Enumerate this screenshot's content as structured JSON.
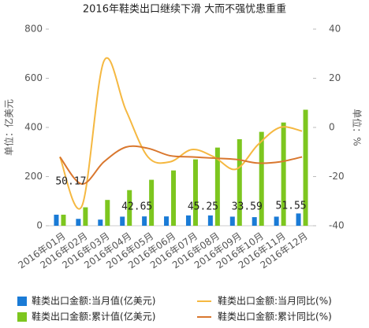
{
  "chart_data": {
    "type": "bar-line",
    "title": "2016年鞋类出口继续下滑 大而不强忧患重重",
    "y_label": "单位：亿美元",
    "y2_label": "单位：%",
    "categories": [
      "2016年01月",
      "2016年02月",
      "2016年03月",
      "2016年04月",
      "2016年05月",
      "2016年06月",
      "2016年07月",
      "2016年08月",
      "2016年09月",
      "2016年10月",
      "2016年11月",
      "2016年12月"
    ],
    "ylim": [
      0,
      800
    ],
    "yticks": [
      0,
      200,
      400,
      600,
      800
    ],
    "y2lim": [
      -40,
      40
    ],
    "y2ticks": [
      -40,
      -20,
      0,
      20,
      40
    ],
    "series": [
      {
        "name": "鞋类出口金额:当月值(亿美元)",
        "kind": "bar",
        "color": "#1a7bd6",
        "values": [
          45,
          28,
          25,
          37,
          38,
          38,
          42,
          42,
          37,
          35,
          37,
          50
        ]
      },
      {
        "name": "鞋类出口金额:累计值(亿美元)",
        "kind": "bar",
        "color": "#7dc61f",
        "values": [
          45,
          75,
          105,
          145,
          187,
          225,
          270,
          318,
          352,
          382,
          420,
          472
        ]
      },
      {
        "name": "鞋类出口金额:当月同比(%)",
        "kind": "line",
        "axis": "y2",
        "color": "#f5b841",
        "values": [
          -12,
          -32,
          27,
          7,
          -12,
          -14,
          -9,
          -12,
          -17,
          -7,
          0,
          -1.5
        ]
      },
      {
        "name": "鞋类出口金额:累计同比(%)",
        "kind": "line",
        "axis": "y2",
        "color": "#d9772e",
        "values": [
          -12,
          -23,
          -14,
          -8,
          -8.5,
          -11.5,
          -12,
          -12.5,
          -13,
          -14.5,
          -14,
          -12
        ]
      }
    ],
    "annotations": [
      "50.17",
      "42.65",
      "45.25",
      "33.59",
      "51.55"
    ]
  }
}
